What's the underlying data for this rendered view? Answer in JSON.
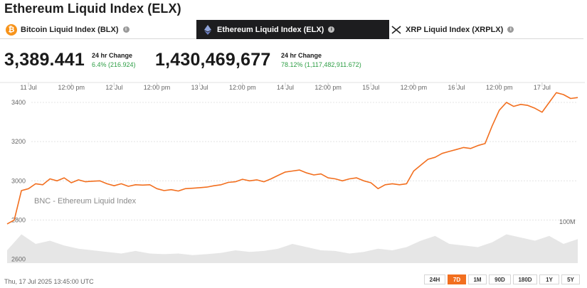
{
  "page": {
    "title": "Ethereum Liquid Index (ELX)"
  },
  "tabs": [
    {
      "label": "Bitcoin Liquid Index (BLX)",
      "icon": "bitcoin-icon",
      "active": false
    },
    {
      "label": "Ethereum Liquid Index (ELX)",
      "icon": "ethereum-icon",
      "active": true
    },
    {
      "label": "XRP Liquid Index (XRPLX)",
      "icon": "xrp-icon",
      "active": false
    }
  ],
  "stats": [
    {
      "value": "3,389.441",
      "change_label": "24 hr Change",
      "change_value": "6.4% (216.924)"
    },
    {
      "value": "1,430,469,677",
      "change_label": "24 hr Change",
      "change_value": "78.12% (1,117,482,911.672)"
    }
  ],
  "colors": {
    "accent": "#f26f1f",
    "positive": "#2e9e45",
    "volume": "#e6e6e6",
    "active_tab": "#1d1d1f"
  },
  "chart": {
    "watermark": "BNC - Ethereum Liquid Index",
    "volume_label": "100M"
  },
  "chart_data": {
    "type": "line",
    "x_tick_labels": [
      "11 Jul",
      "12:00 pm",
      "12 Jul",
      "12:00 pm",
      "13 Jul",
      "12:00 pm",
      "14 Jul",
      "12:00 pm",
      "15 Jul",
      "12:00 pm",
      "16 Jul",
      "12:00 pm",
      "17 Jul"
    ],
    "y_ticks": [
      2600,
      2800,
      3000,
      3200,
      3400
    ],
    "ylim": [
      2580,
      3480
    ],
    "x_range_hours": [
      0,
      160
    ],
    "grid": true,
    "series": [
      {
        "x": [
          0,
          2,
          4,
          5,
          6,
          8,
          10,
          12,
          14,
          16,
          18,
          20,
          22,
          24,
          26,
          28,
          30,
          32,
          34,
          36,
          38,
          40,
          42,
          44,
          46,
          48,
          50,
          52,
          54,
          56,
          58,
          60,
          62,
          64,
          66,
          68,
          70,
          72,
          74,
          76,
          78,
          80,
          82,
          84,
          86,
          88,
          90,
          92,
          94,
          96,
          98,
          100,
          102,
          104,
          106,
          108,
          110,
          112,
          114,
          116,
          118,
          120,
          122,
          124,
          126,
          128,
          130,
          132,
          134,
          136,
          138,
          140,
          142,
          144,
          146,
          148,
          150,
          152,
          154,
          156,
          158,
          160
        ],
        "y": [
          2780,
          2800,
          2950,
          2955,
          2960,
          2985,
          2980,
          3010,
          3000,
          3015,
          2990,
          3005,
          2995,
          2998,
          3000,
          2985,
          2975,
          2985,
          2972,
          2980,
          2978,
          2980,
          2960,
          2950,
          2955,
          2948,
          2960,
          2962,
          2965,
          2968,
          2975,
          2980,
          2992,
          2995,
          3008,
          3000,
          3005,
          2995,
          3010,
          3028,
          3045,
          3050,
          3055,
          3040,
          3030,
          3035,
          3015,
          3010,
          3000,
          3010,
          3015,
          3000,
          2990,
          2960,
          2980,
          2985,
          2980,
          2985,
          3050,
          3080,
          3110,
          3120,
          3140,
          3150,
          3160,
          3170,
          3165,
          3180,
          3190,
          3280,
          3360,
          3400,
          3380,
          3390,
          3385,
          3370,
          3350,
          3400,
          3450,
          3440,
          3420,
          3425
        ]
      }
    ],
    "volume_x": [
      0,
      4,
      8,
      12,
      16,
      20,
      24,
      28,
      32,
      36,
      40,
      44,
      48,
      52,
      56,
      60,
      64,
      68,
      72,
      76,
      80,
      84,
      88,
      92,
      96,
      100,
      104,
      108,
      112,
      116,
      120,
      124,
      128,
      132,
      136,
      140,
      144,
      148,
      152,
      156,
      160
    ],
    "volume": [
      40,
      90,
      60,
      70,
      55,
      45,
      40,
      35,
      30,
      38,
      30,
      28,
      30,
      25,
      28,
      32,
      40,
      35,
      38,
      45,
      60,
      50,
      40,
      38,
      30,
      35,
      45,
      40,
      50,
      70,
      85,
      60,
      55,
      50,
      65,
      90,
      80,
      70,
      85,
      60,
      75
    ]
  },
  "footer": {
    "timestamp": "Thu, 17 Jul 2025 13:45:00 UTC",
    "ranges": [
      {
        "label": "24H",
        "active": false
      },
      {
        "label": "7D",
        "active": true
      },
      {
        "label": "1M",
        "active": false
      },
      {
        "label": "90D",
        "active": false
      },
      {
        "label": "180D",
        "active": false
      },
      {
        "label": "1Y",
        "active": false
      },
      {
        "label": "5Y",
        "active": false
      }
    ]
  }
}
